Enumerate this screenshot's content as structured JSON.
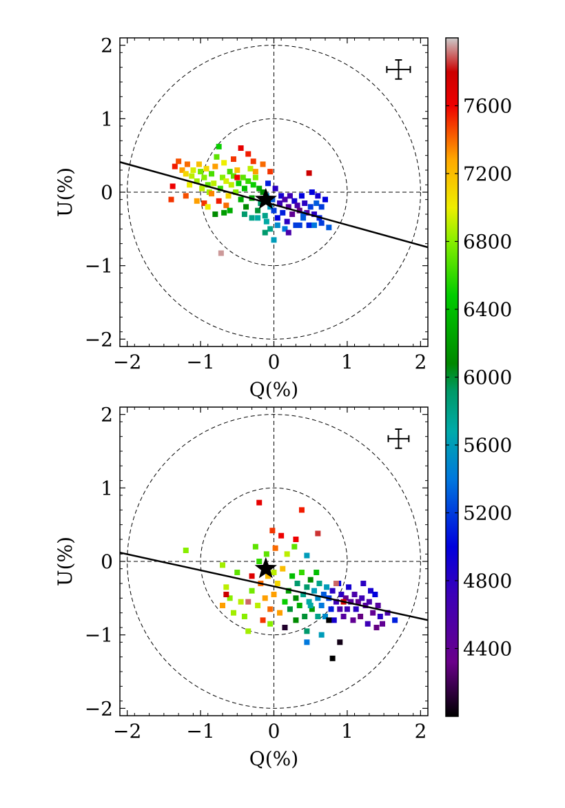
{
  "chart_data": [
    {
      "type": "scatter",
      "xlabel": "Q(%)",
      "ylabel": "U(%)",
      "xlim": [
        -2.1,
        2.1
      ],
      "ylim": [
        -2.1,
        2.1
      ],
      "xticks": [
        -2,
        -1,
        0,
        1,
        2
      ],
      "yticks": [
        -2,
        -1,
        0,
        1,
        2
      ],
      "tick_labels_x": [
        "−2",
        "−1",
        "0",
        "1",
        "2"
      ],
      "tick_labels_y": [
        "−2",
        "−1",
        "0",
        "1",
        "2"
      ],
      "circles_radii": [
        1,
        2
      ],
      "crosshair_lines": true,
      "fit_line": {
        "x": [
          -2.1,
          2.1
        ],
        "y": [
          0.41,
          -0.75
        ]
      },
      "star": {
        "x": -0.11,
        "y": -0.1
      },
      "error_bar": {
        "x": 1.7,
        "y": 1.67,
        "dx": 0.16,
        "dy": 0.13
      },
      "points": [
        [
          -1.35,
          0.35,
          7550
        ],
        [
          -1.3,
          0.42,
          7450
        ],
        [
          -1.25,
          0.3,
          7300
        ],
        [
          -1.2,
          0.25,
          7100
        ],
        [
          -1.18,
          0.38,
          7400
        ],
        [
          -1.15,
          0.1,
          7000
        ],
        [
          -1.12,
          0.22,
          6900
        ],
        [
          -1.1,
          0.3,
          6950
        ],
        [
          -1.05,
          0.15,
          6850
        ],
        [
          -1.02,
          0.38,
          7200
        ],
        [
          -1.0,
          0.28,
          6750
        ],
        [
          -0.98,
          0.05,
          6900
        ],
        [
          -0.95,
          0.2,
          6800
        ],
        [
          -0.92,
          0.32,
          7100
        ],
        [
          -0.9,
          0.1,
          6700
        ],
        [
          -0.88,
          0.0,
          6850
        ],
        [
          -0.85,
          0.25,
          6650
        ],
        [
          -0.82,
          0.12,
          6900
        ],
        [
          -0.8,
          0.35,
          7300
        ],
        [
          -0.78,
          0.48,
          6700
        ],
        [
          -0.75,
          0.62,
          6500
        ],
        [
          -0.73,
          0.05,
          6600
        ],
        [
          -0.7,
          0.2,
          6800
        ],
        [
          -0.68,
          0.4,
          7000
        ],
        [
          -0.65,
          0.15,
          6950
        ],
        [
          -0.62,
          -0.05,
          7100
        ],
        [
          -0.6,
          0.28,
          6650
        ],
        [
          -0.58,
          0.1,
          6900
        ],
        [
          -0.55,
          0.22,
          6700
        ],
        [
          -0.52,
          0.0,
          6800
        ],
        [
          -0.5,
          0.3,
          7200
        ],
        [
          -0.48,
          0.12,
          6500
        ],
        [
          -0.45,
          -0.1,
          6300
        ],
        [
          -0.42,
          0.2,
          6700
        ],
        [
          -0.4,
          0.05,
          6400
        ],
        [
          -0.38,
          -0.2,
          6100
        ],
        [
          -0.35,
          0.15,
          6600
        ],
        [
          -0.32,
          0.32,
          6900
        ],
        [
          -0.3,
          -0.08,
          6200
        ],
        [
          -0.28,
          0.1,
          6500
        ],
        [
          -0.25,
          0.2,
          6800
        ],
        [
          -0.22,
          -0.25,
          6000
        ],
        [
          -0.2,
          0.05,
          6300
        ],
        [
          -0.18,
          -0.15,
          5900
        ],
        [
          -0.15,
          0.0,
          6100
        ],
        [
          -0.12,
          -0.32,
          5800
        ],
        [
          -0.1,
          -0.05,
          5500
        ],
        [
          -0.08,
          0.12,
          5100
        ],
        [
          -0.05,
          -0.2,
          5600
        ],
        [
          -0.02,
          -0.1,
          5300
        ],
        [
          0.0,
          -0.25,
          5200
        ],
        [
          0.02,
          0.05,
          4800
        ],
        [
          0.05,
          -0.35,
          5000
        ],
        [
          0.08,
          -0.15,
          4700
        ],
        [
          0.1,
          -0.05,
          4900
        ],
        [
          0.12,
          -0.28,
          5100
        ],
        [
          0.15,
          -0.1,
          4600
        ],
        [
          0.18,
          -0.4,
          4800
        ],
        [
          0.2,
          -0.2,
          4500
        ],
        [
          0.22,
          -0.05,
          4700
        ],
        [
          0.25,
          -0.3,
          4400
        ],
        [
          0.28,
          -0.12,
          4900
        ],
        [
          0.3,
          -0.45,
          5200
        ],
        [
          0.32,
          -0.18,
          4600
        ],
        [
          0.35,
          -0.25,
          4300
        ],
        [
          0.38,
          -0.05,
          5000
        ],
        [
          0.4,
          -0.35,
          5300
        ],
        [
          0.42,
          -0.15,
          4800
        ],
        [
          0.45,
          -0.28,
          4500
        ],
        [
          0.48,
          -0.45,
          5100
        ],
        [
          0.5,
          -0.2,
          5200
        ],
        [
          0.52,
          0.0,
          5000
        ],
        [
          0.55,
          -0.3,
          4800
        ],
        [
          0.58,
          -0.15,
          5300
        ],
        [
          0.6,
          -0.05,
          4900
        ],
        [
          0.62,
          -0.35,
          5100
        ],
        [
          0.65,
          -0.2,
          5200
        ],
        [
          0.7,
          -0.1,
          5000
        ],
        [
          0.75,
          -0.48,
          5300
        ],
        [
          0.48,
          0.26,
          7800
        ],
        [
          -1.4,
          -0.1,
          7500
        ],
        [
          -1.38,
          0.08,
          7600
        ],
        [
          -1.2,
          -0.05,
          7450
        ],
        [
          -1.05,
          -0.12,
          7300
        ],
        [
          -0.95,
          -0.15,
          7500
        ],
        [
          -0.85,
          -0.02,
          7350
        ],
        [
          -0.75,
          -0.12,
          7550
        ],
        [
          -0.65,
          -0.18,
          7400
        ],
        [
          -0.5,
          0.2,
          7600
        ],
        [
          -0.45,
          0.6,
          7650
        ],
        [
          -0.55,
          0.45,
          7500
        ],
        [
          -0.35,
          0.52,
          7550
        ],
        [
          -0.28,
          0.42,
          7500
        ],
        [
          -0.15,
          0.38,
          7400
        ],
        [
          -0.05,
          0.28,
          7500
        ],
        [
          -0.25,
          0.28,
          7300
        ],
        [
          -0.4,
          -0.3,
          5900
        ],
        [
          -0.3,
          -0.35,
          5800
        ],
        [
          -0.1,
          -0.4,
          5700
        ],
        [
          -0.05,
          -0.5,
          5800
        ],
        [
          0.0,
          -0.65,
          5600
        ],
        [
          -0.12,
          -0.55,
          5900
        ],
        [
          0.05,
          -0.45,
          5500
        ],
        [
          0.15,
          -0.5,
          5400
        ],
        [
          0.35,
          -0.45,
          5200
        ],
        [
          0.4,
          -0.3,
          5300
        ],
        [
          0.55,
          -0.45,
          5400
        ],
        [
          0.65,
          -0.42,
          5200
        ],
        [
          0.2,
          -0.55,
          4600
        ],
        [
          -0.72,
          -0.83,
          7950
        ],
        [
          -0.22,
          -0.35,
          5700
        ],
        [
          -0.6,
          -0.25,
          6300
        ],
        [
          -0.68,
          -0.28,
          6200
        ],
        [
          -0.8,
          -0.3,
          6100
        ],
        [
          -0.9,
          -0.2,
          7000
        ]
      ]
    },
    {
      "type": "scatter",
      "xlabel": "Q(%)",
      "ylabel": "U(%)",
      "xlim": [
        -2.1,
        2.1
      ],
      "ylim": [
        -2.1,
        2.1
      ],
      "xticks": [
        -2,
        -1,
        0,
        1,
        2
      ],
      "yticks": [
        -2,
        -1,
        0,
        1,
        2
      ],
      "tick_labels_x": [
        "−2",
        "−1",
        "0",
        "1",
        "2"
      ],
      "tick_labels_y": [
        "−2",
        "−1",
        "0",
        "1",
        "2"
      ],
      "circles_radii": [
        1,
        2
      ],
      "crosshair_lines": true,
      "fit_line": {
        "x": [
          -2.1,
          2.1
        ],
        "y": [
          0.12,
          -0.8
        ]
      },
      "star": {
        "x": -0.11,
        "y": -0.1
      },
      "error_bar": {
        "x": 1.7,
        "y": 1.67,
        "dx": 0.14,
        "dy": 0.13
      },
      "points": [
        [
          -1.2,
          0.15,
          6800
        ],
        [
          -0.7,
          -0.05,
          6850
        ],
        [
          -0.65,
          -0.35,
          6900
        ],
        [
          -0.6,
          -0.5,
          6800
        ],
        [
          -0.55,
          -0.7,
          6850
        ],
        [
          -0.5,
          -0.15,
          6700
        ],
        [
          -0.45,
          -0.55,
          6900
        ],
        [
          -0.4,
          -0.75,
          6800
        ],
        [
          -0.35,
          -0.95,
          6850
        ],
        [
          -0.3,
          -0.4,
          6750
        ],
        [
          -0.25,
          0.2,
          6700
        ],
        [
          -0.22,
          -0.6,
          6900
        ],
        [
          -0.2,
          0.0,
          6600
        ],
        [
          -0.18,
          -0.3,
          7400
        ],
        [
          -0.15,
          -0.8,
          7500
        ],
        [
          -0.12,
          -0.5,
          7300
        ],
        [
          -0.1,
          0.1,
          6700
        ],
        [
          -0.08,
          -0.2,
          7200
        ],
        [
          -0.05,
          -0.65,
          7400
        ],
        [
          -0.02,
          0.42,
          7500
        ],
        [
          0.0,
          -0.45,
          7300
        ],
        [
          0.02,
          0.18,
          7400
        ],
        [
          0.05,
          -0.3,
          7100
        ],
        [
          0.08,
          -0.7,
          7300
        ],
        [
          0.1,
          0.35,
          7600
        ],
        [
          0.12,
          -0.1,
          7200
        ],
        [
          0.15,
          -0.55,
          6500
        ],
        [
          0.18,
          0.1,
          6900
        ],
        [
          0.2,
          -0.4,
          6200
        ],
        [
          0.22,
          -0.65,
          6000
        ],
        [
          0.25,
          -0.2,
          6400
        ],
        [
          0.28,
          0.2,
          6700
        ],
        [
          0.3,
          -0.5,
          6100
        ],
        [
          0.32,
          -0.3,
          5900
        ],
        [
          0.35,
          -0.6,
          6300
        ],
        [
          0.38,
          -0.15,
          6600
        ],
        [
          0.4,
          -0.45,
          5800
        ],
        [
          0.42,
          -0.75,
          6000
        ],
        [
          0.45,
          -0.35,
          5900
        ],
        [
          0.48,
          -0.55,
          5700
        ],
        [
          0.5,
          -0.25,
          6100
        ],
        [
          0.52,
          -0.65,
          6200
        ],
        [
          0.55,
          -0.4,
          5600
        ],
        [
          0.58,
          -0.15,
          6400
        ],
        [
          0.6,
          -0.5,
          5500
        ],
        [
          0.62,
          -0.3,
          5800
        ],
        [
          0.65,
          -0.6,
          5400
        ],
        [
          0.68,
          -0.45,
          5300
        ],
        [
          0.7,
          -0.75,
          5500
        ],
        [
          0.72,
          -0.35,
          5600
        ],
        [
          0.75,
          -0.5,
          5200
        ],
        [
          0.78,
          -0.65,
          5100
        ],
        [
          0.8,
          -0.4,
          4800
        ],
        [
          0.82,
          -0.8,
          4900
        ],
        [
          0.85,
          -0.55,
          4700
        ],
        [
          0.88,
          -0.3,
          5000
        ],
        [
          0.9,
          -0.65,
          4600
        ],
        [
          0.92,
          -0.45,
          4800
        ],
        [
          0.95,
          -0.75,
          4500
        ],
        [
          0.98,
          -0.5,
          4400
        ],
        [
          1.0,
          -0.65,
          4700
        ],
        [
          1.02,
          -0.35,
          4900
        ],
        [
          1.05,
          -0.55,
          4500
        ],
        [
          1.08,
          -0.8,
          4400
        ],
        [
          1.1,
          -0.45,
          4600
        ],
        [
          1.12,
          -0.65,
          4800
        ],
        [
          1.15,
          -0.55,
          4400
        ],
        [
          1.18,
          -0.75,
          4300
        ],
        [
          1.2,
          -0.5,
          4700
        ],
        [
          1.22,
          -0.3,
          4800
        ],
        [
          1.25,
          -0.6,
          4500
        ],
        [
          1.28,
          -0.85,
          4700
        ],
        [
          1.3,
          -0.55,
          4600
        ],
        [
          1.32,
          -0.4,
          4900
        ],
        [
          1.35,
          -0.7,
          4400
        ],
        [
          1.38,
          -0.45,
          5000
        ],
        [
          1.4,
          -0.9,
          4300
        ],
        [
          1.42,
          -0.6,
          4500
        ],
        [
          1.45,
          -0.75,
          4800
        ],
        [
          1.48,
          -0.85,
          4400
        ],
        [
          1.55,
          -0.7,
          4600
        ],
        [
          1.65,
          -0.8,
          5100
        ],
        [
          0.15,
          -0.9,
          4100
        ],
        [
          0.75,
          -0.8,
          4000
        ],
        [
          0.9,
          -1.1,
          4050
        ],
        [
          0.8,
          -1.32,
          4000
        ],
        [
          -0.2,
          0.8,
          7650
        ],
        [
          0.38,
          0.7,
          7550
        ],
        [
          0.6,
          0.38,
          7850
        ],
        [
          0.45,
          0.08,
          5600
        ],
        [
          0.3,
          0.3,
          7600
        ],
        [
          -0.3,
          -0.2,
          7700
        ],
        [
          -0.35,
          -0.55,
          7900
        ],
        [
          -0.65,
          -0.45,
          7800
        ],
        [
          0.85,
          -0.3,
          7900
        ],
        [
          0.95,
          -0.55,
          7800
        ],
        [
          0.5,
          -0.6,
          5700
        ],
        [
          0.6,
          -0.75,
          5800
        ],
        [
          0.3,
          -0.8,
          6100
        ],
        [
          0.45,
          -0.95,
          5900
        ],
        [
          0.45,
          -1.1,
          5400
        ],
        [
          0.65,
          -1.0,
          5600
        ],
        [
          -0.05,
          -0.85,
          6800
        ],
        [
          0.0,
          -0.15,
          6900
        ],
        [
          -0.7,
          -0.6,
          7300
        ]
      ]
    }
  ],
  "colorbar": {
    "range": [
      4000,
      8000
    ],
    "ticks": [
      4400,
      4800,
      5200,
      5600,
      6000,
      6400,
      6800,
      7200,
      7600
    ],
    "tick_labels": [
      "4400",
      "4800",
      "5200",
      "5600",
      "6000",
      "6400",
      "6800",
      "7200",
      "7600"
    ]
  }
}
